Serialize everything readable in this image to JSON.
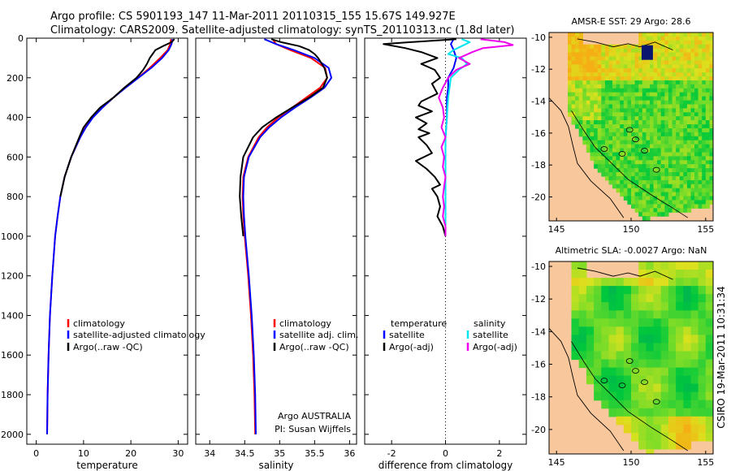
{
  "header": {
    "line1": "Argo profile: CS 5901193_147 11-Mar-2011 20110315_155 15.67S 149.927E",
    "line2": "Climatology: CARS2009. Satellite-adjusted climatology: synTS_20110313.nc (1.8d later)"
  },
  "credits": {
    "argo": "Argo AUSTRALIA",
    "pi": "PI: Susan Wijffels",
    "csiro": "CSIRO 19-Mar-2011 10:31:34"
  },
  "colors": {
    "climatology": "#ff0000",
    "satellite": "#0000ff",
    "argo": "#000000",
    "sal_satellite": "#00e5ee",
    "sal_argo": "#ee00ee",
    "land": "#f8c79c"
  },
  "chart_data": [
    {
      "type": "line",
      "id": "temperature",
      "xlabel": "temperature",
      "ylabel": "",
      "xlim": [
        -2,
        32
      ],
      "ylim": [
        2050,
        0
      ],
      "xticks": [
        0,
        10,
        20,
        30
      ],
      "yticks": [
        0,
        200,
        400,
        600,
        800,
        1000,
        1200,
        1400,
        1600,
        1800,
        2000
      ],
      "legend": [
        "climatology",
        "satellite-adjusted climatology",
        "Argo(..raw -QC)"
      ],
      "series": [
        {
          "name": "climatology",
          "color": "#ff0000",
          "depth": [
            5,
            30,
            60,
            100,
            150,
            200,
            250,
            300,
            350,
            400,
            450,
            500,
            600,
            700,
            800,
            900,
            1000,
            1200,
            1400,
            1600,
            1800,
            2000
          ],
          "values": [
            28.5,
            28.3,
            27.8,
            26.2,
            24.0,
            21.5,
            18.8,
            16.3,
            14.0,
            11.9,
            10.4,
            9.3,
            7.4,
            6.0,
            5.1,
            4.5,
            4.0,
            3.4,
            2.9,
            2.6,
            2.4,
            2.3
          ]
        },
        {
          "name": "satellite-adjusted climatology",
          "color": "#0000ff",
          "depth": [
            5,
            30,
            60,
            100,
            150,
            200,
            250,
            300,
            350,
            400,
            450,
            500,
            600,
            700,
            800,
            900,
            1000,
            1200,
            1400,
            1600,
            1800,
            2000
          ],
          "values": [
            28.8,
            28.6,
            28.0,
            26.6,
            24.3,
            21.6,
            18.9,
            16.3,
            14.0,
            12.0,
            10.5,
            9.3,
            7.4,
            6.0,
            5.1,
            4.5,
            4.0,
            3.4,
            2.9,
            2.6,
            2.4,
            2.3
          ]
        },
        {
          "name": "Argo(..raw -QC)",
          "color": "#000000",
          "depth": [
            5,
            20,
            40,
            60,
            80,
            100,
            130,
            160,
            200,
            250,
            300,
            350,
            400,
            450,
            500,
            600,
            700,
            800
          ],
          "values": [
            29.2,
            28.6,
            26.8,
            25.2,
            24.6,
            24.0,
            23.4,
            22.6,
            21.2,
            18.6,
            16.3,
            13.5,
            11.6,
            10.0,
            9.1,
            7.4,
            6.0,
            5.1
          ]
        }
      ]
    },
    {
      "type": "line",
      "id": "salinity",
      "xlabel": "salinity",
      "ylabel": "",
      "xlim": [
        33.8,
        36.1
      ],
      "ylim": [
        2050,
        0
      ],
      "xticks": [
        34,
        34.5,
        35,
        35.5,
        36
      ],
      "yticks": [],
      "legend": [
        "climatology",
        "satellite adj. clim.",
        "Argo(..raw -QC)"
      ],
      "series": [
        {
          "name": "climatology",
          "color": "#ff0000",
          "depth": [
            5,
            30,
            60,
            100,
            150,
            200,
            250,
            300,
            350,
            400,
            450,
            500,
            600,
            700,
            800,
            900,
            1000,
            1200,
            1400,
            1600,
            1800,
            2000
          ],
          "values": [
            34.9,
            34.95,
            35.15,
            35.45,
            35.65,
            35.68,
            35.58,
            35.38,
            35.18,
            34.98,
            34.82,
            34.7,
            34.55,
            34.48,
            34.47,
            34.48,
            34.5,
            34.55,
            34.59,
            34.62,
            34.64,
            34.65
          ]
        },
        {
          "name": "satellite adj. clim.",
          "color": "#0000ff",
          "depth": [
            5,
            30,
            60,
            100,
            150,
            200,
            250,
            300,
            350,
            400,
            450,
            500,
            600,
            700,
            800,
            900,
            1000,
            1200,
            1400,
            1600,
            1800,
            2000
          ],
          "values": [
            34.78,
            34.95,
            35.2,
            35.5,
            35.7,
            35.74,
            35.64,
            35.44,
            35.22,
            35.02,
            34.85,
            34.72,
            34.56,
            34.49,
            34.48,
            34.49,
            34.51,
            34.56,
            34.6,
            34.63,
            34.65,
            34.66
          ]
        },
        {
          "name": "Argo(..raw -QC)",
          "color": "#000000",
          "depth": [
            5,
            20,
            40,
            60,
            80,
            100,
            150,
            200,
            250,
            300,
            350,
            400,
            450,
            500,
            600,
            700,
            800,
            900,
            1000
          ],
          "values": [
            34.88,
            35.02,
            35.28,
            35.42,
            35.5,
            35.55,
            35.64,
            35.68,
            35.62,
            35.42,
            35.18,
            34.95,
            34.75,
            34.62,
            34.48,
            34.44,
            34.43,
            34.45,
            34.48
          ]
        }
      ]
    },
    {
      "type": "line",
      "id": "difference",
      "xlabel": "difference from climatology",
      "ylabel": "",
      "xlim": [
        -3,
        3
      ],
      "ylim": [
        2050,
        0
      ],
      "xticks": [
        -2,
        0,
        2
      ],
      "yticks": [],
      "legend_headers": [
        "temperature",
        "salinity"
      ],
      "legend": [
        "satellite",
        "Argo(-adj)",
        "satellite",
        "Argo(-adj)"
      ],
      "series": [
        {
          "name": "temperature satellite",
          "color": "#0000ff",
          "depth": [
            5,
            30,
            60,
            100,
            150,
            200,
            250,
            300,
            400,
            500,
            600,
            700,
            800,
            900,
            1000
          ],
          "values": [
            0.3,
            0.2,
            0.3,
            0.4,
            0.3,
            0.1,
            0.1,
            0.05,
            0.05,
            0.0,
            0.0,
            0.0,
            0.0,
            0.0,
            0.0
          ]
        },
        {
          "name": "temperature Argo(-adj)",
          "color": "#000000",
          "depth": [
            5,
            20,
            30,
            50,
            70,
            100,
            130,
            160,
            200,
            230,
            280,
            320,
            340,
            370,
            400,
            430,
            460,
            480,
            500,
            540,
            580,
            620,
            660,
            700,
            740,
            760,
            800,
            850,
            900,
            950,
            1000
          ],
          "values": [
            0.4,
            -1.3,
            -2.3,
            -1.5,
            -0.9,
            -0.3,
            -0.9,
            -0.4,
            -0.2,
            -0.5,
            -0.3,
            -0.9,
            -1.0,
            -0.5,
            -1.1,
            -0.7,
            -1.0,
            -0.6,
            -1.0,
            -0.7,
            -0.5,
            -1.1,
            -0.7,
            -0.4,
            -0.2,
            -0.5,
            -0.3,
            -0.2,
            -0.3,
            -0.1,
            0.0
          ]
        },
        {
          "name": "salinity satellite",
          "color": "#00e5ee",
          "depth": [
            5,
            20,
            40,
            60,
            80,
            100,
            130,
            160,
            200,
            250,
            300,
            400,
            500,
            600,
            700,
            800,
            900,
            1000
          ],
          "values": [
            0.6,
            0.9,
            0.6,
            0.3,
            0.1,
            0.6,
            0.8,
            0.5,
            0.2,
            0.15,
            0.1,
            0.05,
            0.0,
            0.0,
            0.0,
            0.0,
            0.0,
            0.0
          ]
        },
        {
          "name": "salinity Argo(-adj)",
          "color": "#ee00ee",
          "depth": [
            5,
            20,
            35,
            50,
            70,
            100,
            130,
            160,
            200,
            250,
            300,
            350,
            400,
            450,
            500,
            550,
            600,
            650,
            700,
            750,
            800,
            850,
            900,
            950,
            1000
          ],
          "values": [
            1.3,
            2.2,
            2.5,
            1.4,
            1.0,
            0.5,
            0.9,
            0.4,
            0.1,
            -0.1,
            -0.25,
            -0.1,
            -0.05,
            -0.15,
            0.0,
            -0.15,
            -0.05,
            -0.1,
            0.0,
            -0.05,
            -0.1,
            -0.05,
            -0.1,
            0.0,
            0.0
          ]
        }
      ]
    },
    {
      "type": "heatmap",
      "id": "sst_map",
      "title": "AMSR-E SST: 29 Argo: 28.6",
      "xlim": [
        144.5,
        155.5
      ],
      "ylim": [
        -21.5,
        -9.7
      ],
      "xticks": [
        145,
        150,
        155
      ],
      "yticks": [
        -10,
        -12,
        -14,
        -16,
        -18,
        -20
      ],
      "xticklabels": [
        "145",
        "150",
        "155"
      ],
      "yticklabels": [
        "-10",
        "-12",
        "-14",
        "-16",
        "-18",
        "-20"
      ],
      "profile_marker": {
        "lon": 149.927,
        "lat": -15.67
      }
    },
    {
      "type": "heatmap",
      "id": "sla_map",
      "title": "Altimetric SLA: -0.0027 Argo: NaN",
      "xlim": [
        144.5,
        155.5
      ],
      "ylim": [
        -21.5,
        -9.7
      ],
      "xticks": [
        145,
        150,
        155
      ],
      "yticks": [
        -10,
        -12,
        -14,
        -16,
        -18,
        -20
      ],
      "xticklabels": [
        "145",
        "150",
        "155"
      ],
      "yticklabels": [
        "-10",
        "-12",
        "-14",
        "-16",
        "-18",
        "-20"
      ],
      "profile_marker": {
        "lon": 149.927,
        "lat": -15.67
      }
    }
  ]
}
